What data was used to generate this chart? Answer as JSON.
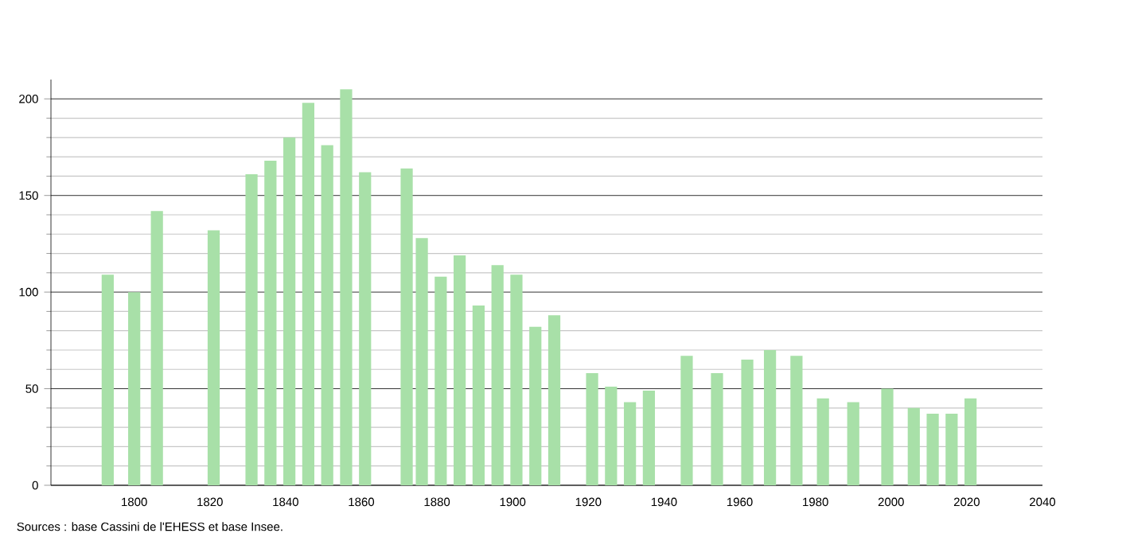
{
  "chart_data": {
    "type": "bar",
    "x": [
      1793,
      1800,
      1806,
      1821,
      1831,
      1836,
      1841,
      1846,
      1851,
      1856,
      1861,
      1872,
      1876,
      1881,
      1886,
      1891,
      1896,
      1901,
      1906,
      1911,
      1921,
      1926,
      1931,
      1936,
      1946,
      1954,
      1962,
      1968,
      1975,
      1982,
      1990,
      1999,
      2006,
      2011,
      2016,
      2021
    ],
    "values": [
      109,
      100,
      142,
      132,
      161,
      168,
      180,
      198,
      176,
      205,
      162,
      164,
      128,
      108,
      119,
      93,
      114,
      109,
      82,
      88,
      58,
      51,
      43,
      49,
      67,
      58,
      65,
      70,
      67,
      45,
      43,
      50,
      40,
      37,
      37,
      45
    ],
    "color": "#a8e0a8",
    "xlim": [
      1778,
      2040
    ],
    "xticks": [
      1800,
      1820,
      1840,
      1860,
      1880,
      1900,
      1920,
      1940,
      1960,
      1980,
      2000,
      2020,
      2040
    ],
    "ylim": [
      0,
      210
    ],
    "yticks": [
      0,
      50,
      100,
      150,
      200
    ],
    "grid": "y",
    "annotations": [
      "Sources : base Cassini de l'EHESS et base Insee."
    ]
  }
}
